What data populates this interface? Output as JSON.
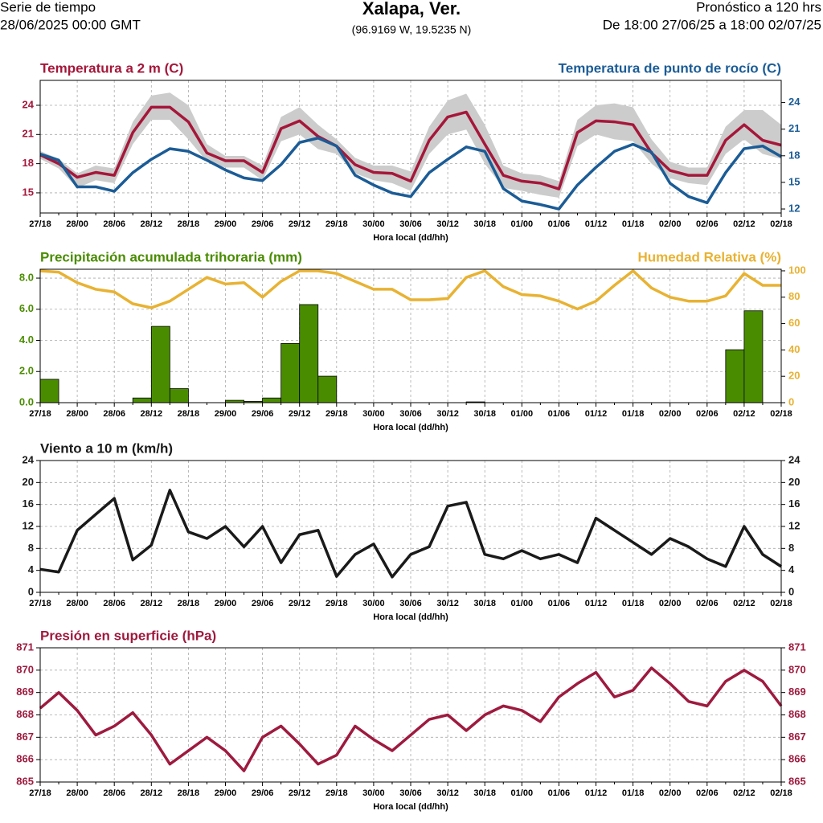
{
  "header": {
    "left": [
      "Serie de tiempo",
      "28/06/2025 00:00 GMT"
    ],
    "title": "Xalapa, Ver.",
    "subtitle": "(96.9169 W, 19.5235 N)",
    "right": [
      "Pronóstico a 120 hrs",
      "De 18:00 27/06/25 a 18:00 02/07/25"
    ]
  },
  "chart_data": [
    {
      "type": "line",
      "xlabel": "Hora local (dd/hh)",
      "grid": true,
      "categories": [
        "27/18",
        null,
        "28/00",
        null,
        "28/06",
        null,
        "28/12",
        null,
        "28/18",
        null,
        "29/00",
        null,
        "29/06",
        null,
        "29/12",
        null,
        "29/18",
        null,
        "30/00",
        null,
        "30/06",
        null,
        "30/12",
        null,
        "30/18",
        null,
        "01/00",
        null,
        "01/06",
        null,
        "01/12",
        null,
        "01/18",
        null,
        "02/00",
        null,
        "02/06",
        null,
        "02/12",
        null,
        "02/18"
      ],
      "ylim": [
        12.93,
        26.56
      ],
      "yticks": [
        15,
        18,
        21,
        24
      ],
      "y2lim": [
        11.55,
        26.5
      ],
      "y2ticks": [
        12,
        15,
        18,
        21,
        24
      ],
      "series": [
        {
          "name": "Temperatura a 2 m (C)",
          "color": "#a5173a",
          "axis": "y",
          "values": [
            18.9,
            18.0,
            16.6,
            17.1,
            16.8,
            21.2,
            23.8,
            23.8,
            22.3,
            19.1,
            18.3,
            18.3,
            17.1,
            21.6,
            22.4,
            20.8,
            19.8,
            17.9,
            17.1,
            17.0,
            16.2,
            20.4,
            22.8,
            23.3,
            20.0,
            16.8,
            16.2,
            16.0,
            15.4,
            21.2,
            22.4,
            22.3,
            22.0,
            19.1,
            17.3,
            16.8,
            16.8,
            20.4,
            22.0,
            20.4,
            19.9
          ],
          "range": {
            "color": "#cccccc",
            "high": [
              19.3,
              18.5,
              17.0,
              17.8,
              17.5,
              22.3,
              25.0,
              25.3,
              24.0,
              20.0,
              18.8,
              18.8,
              17.8,
              22.8,
              23.8,
              22.0,
              20.5,
              18.6,
              17.8,
              17.8,
              17.2,
              21.8,
              24.5,
              25.2,
              22.0,
              17.8,
              17.0,
              16.8,
              16.2,
              22.5,
              24.0,
              24.2,
              23.8,
              20.5,
              18.2,
              17.6,
              17.6,
              21.8,
              23.5,
              23.5,
              22.0
            ],
            "low": [
              18.5,
              17.5,
              15.5,
              16.3,
              16.0,
              20.0,
              22.5,
              22.5,
              20.5,
              18.2,
              17.6,
              17.6,
              16.3,
              20.3,
              21.0,
              19.5,
              19.0,
              17.0,
              16.3,
              16.0,
              15.2,
              19.0,
              21.0,
              21.5,
              18.0,
              15.5,
              15.2,
              14.8,
              14.5,
              19.8,
              21.0,
              20.5,
              20.3,
              18.0,
              16.5,
              16.0,
              15.8,
              19.0,
              20.5,
              19.0,
              18.5
            ]
          }
        },
        {
          "name": "Temperatura de punto de rocío (C)",
          "color": "#1b5c96",
          "axis": "y2",
          "values": [
            18.2,
            17.5,
            14.5,
            14.5,
            14.0,
            16.1,
            17.6,
            18.8,
            18.5,
            17.5,
            16.4,
            15.5,
            15.2,
            17.0,
            19.5,
            20.0,
            19.1,
            15.8,
            14.7,
            13.8,
            13.4,
            16.1,
            17.6,
            19.0,
            18.5,
            14.3,
            12.9,
            12.5,
            12.0,
            14.7,
            16.7,
            18.5,
            19.3,
            18.4,
            14.9,
            13.4,
            12.7,
            16.1,
            18.8,
            19.1,
            17.9
          ]
        }
      ]
    },
    {
      "type": "bar",
      "xlabel": "Hora local (dd/hh)",
      "grid": true,
      "categories": [
        "27/18",
        null,
        "28/00",
        null,
        "28/06",
        null,
        "28/12",
        null,
        "28/18",
        null,
        "29/00",
        null,
        "29/06",
        null,
        "29/12",
        null,
        "29/18",
        null,
        "30/00",
        null,
        "30/06",
        null,
        "30/12",
        null,
        "30/18",
        null,
        "01/00",
        null,
        "01/06",
        null,
        "01/12",
        null,
        "01/18",
        null,
        "02/00",
        null,
        "02/06",
        null,
        "02/12",
        null,
        "02/18"
      ],
      "ylim": [
        0,
        8.57
      ],
      "yticks": [
        {
          "value": 0,
          "label": "0.0"
        },
        {
          "value": 2,
          "label": "2.0"
        },
        {
          "value": 4,
          "label": "4.0"
        },
        {
          "value": 6,
          "label": "6.0"
        },
        {
          "value": 8,
          "label": "8.0"
        }
      ],
      "y2lim": [
        0,
        101.2
      ],
      "y2ticks": [
        0,
        20,
        40,
        60,
        80,
        100
      ],
      "series": [
        {
          "name": "Precipitación acumulada trihoraria (mm)",
          "color": "#4a8c00",
          "axis": "y",
          "type": "bar",
          "values": [
            null,
            1.5,
            0,
            0,
            0,
            0,
            0.3,
            4.9,
            0.9,
            0,
            0,
            0.15,
            0.08,
            0.3,
            3.8,
            6.3,
            1.7,
            0,
            0,
            0,
            0,
            0,
            0,
            0,
            0.05,
            0,
            0,
            0,
            0,
            0,
            0,
            0,
            0,
            0,
            0,
            0,
            0,
            0,
            3.4,
            5.9,
            0
          ]
        },
        {
          "name": "Humedad Relativa (%)",
          "color": "#e8b232",
          "axis": "y2",
          "type": "line",
          "values": [
            100,
            99,
            91,
            86,
            84,
            75,
            72,
            77,
            86,
            95,
            90,
            91,
            80,
            92,
            100,
            100,
            98,
            92,
            86,
            86,
            78,
            78,
            79,
            95,
            100,
            88,
            82,
            81,
            77,
            71,
            77,
            89,
            100,
            87,
            80,
            77,
            77,
            81,
            98,
            89,
            89
          ]
        }
      ]
    },
    {
      "type": "line",
      "xlabel": "Hora local (dd/hh)",
      "grid": true,
      "mirror_yticks": true,
      "categories": [
        "27/18",
        null,
        "28/00",
        null,
        "28/06",
        null,
        "28/12",
        null,
        "28/18",
        null,
        "29/00",
        null,
        "29/06",
        null,
        "29/12",
        null,
        "29/18",
        null,
        "30/00",
        null,
        "30/06",
        null,
        "30/12",
        null,
        "30/18",
        null,
        "01/00",
        null,
        "01/06",
        null,
        "01/12",
        null,
        "01/18",
        null,
        "02/00",
        null,
        "02/06",
        null,
        "02/12",
        null,
        "02/18"
      ],
      "ylim": [
        0,
        24
      ],
      "yticks": [
        0,
        4,
        8,
        12,
        16,
        20,
        24
      ],
      "series": [
        {
          "name": "Viento a 10 m (km/h)",
          "color": "#1a1a1a",
          "axis": "y",
          "values": [
            4.2,
            3.7,
            11.3,
            14.2,
            17.1,
            5.9,
            8.6,
            18.6,
            11.0,
            9.8,
            12.0,
            8.3,
            12.0,
            5.4,
            10.5,
            11.3,
            2.9,
            6.9,
            8.8,
            2.8,
            6.9,
            8.3,
            15.7,
            16.4,
            6.9,
            6.1,
            7.6,
            6.1,
            6.9,
            5.4,
            13.5,
            11.3,
            9.1,
            6.9,
            9.8,
            8.3,
            6.1,
            4.7,
            12.0,
            6.9,
            4.7
          ]
        }
      ]
    },
    {
      "type": "line",
      "xlabel": "Hora local (dd/hh)",
      "grid": true,
      "mirror_yticks": true,
      "categories": [
        "27/18",
        null,
        "28/00",
        null,
        "28/06",
        null,
        "28/12",
        null,
        "28/18",
        null,
        "29/00",
        null,
        "29/06",
        null,
        "29/12",
        null,
        "29/18",
        null,
        "30/00",
        null,
        "30/06",
        null,
        "30/12",
        null,
        "30/18",
        null,
        "01/00",
        null,
        "01/06",
        null,
        "01/12",
        null,
        "01/18",
        null,
        "02/00",
        null,
        "02/06",
        null,
        "02/12",
        null,
        "02/18"
      ],
      "ylim": [
        865,
        871
      ],
      "yticks": [
        865,
        866,
        867,
        868,
        869,
        870,
        871
      ],
      "series": [
        {
          "name": "Presión en superficie (hPa)",
          "color": "#9e1a3e",
          "axis": "y",
          "values": [
            868.3,
            869.0,
            868.2,
            867.1,
            867.5,
            868.1,
            867.1,
            865.8,
            866.4,
            867.0,
            866.4,
            865.5,
            867.0,
            867.5,
            866.7,
            865.8,
            866.2,
            867.5,
            866.9,
            866.4,
            867.1,
            867.8,
            868.0,
            867.3,
            868.0,
            868.4,
            868.2,
            867.7,
            868.8,
            869.4,
            869.9,
            868.8,
            869.1,
            870.1,
            869.4,
            868.6,
            868.4,
            869.5,
            870.0,
            869.5,
            868.4
          ]
        }
      ]
    }
  ]
}
